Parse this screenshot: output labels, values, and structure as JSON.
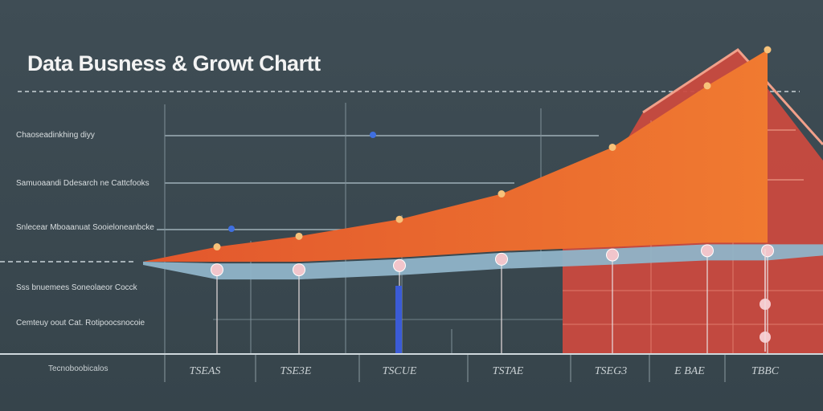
{
  "title": "Data Busness & Growt Chartt",
  "x_caption": "Tecnoboobicalos",
  "y_labels": [
    "Chaoseadinkhing diyy",
    "Samuoaandi  Ddesarch ne Cattcfooks",
    "Snlecear  Mboaanuat Sooieloneanbcke",
    "Sss bnuemees Soneolaeor Cocck",
    "Cemteuy oout Cat. Rotipoocsnocoie"
  ],
  "colors": {
    "background": "#3c4a52",
    "orange_area": "#e8622f",
    "red_block": "#c94a3f",
    "blue_band": "#8fb4c8",
    "blue_bar": "#3b5bd6"
  },
  "chart_data": {
    "type": "area",
    "title": "Data Busness & Growt Chartt",
    "xlabel": "Tecnoboobicalos",
    "ylabel": "",
    "categories": [
      "TSEAS",
      "TSE3E",
      "TSCUE",
      "TSTAE",
      "TSEG3",
      "E BAE",
      "TBBC"
    ],
    "ylim": [
      0,
      100
    ],
    "series": [
      {
        "values": [
          7,
          12,
          20,
          32,
          54,
          83,
          100
        ]
      },
      {
        "values": [
          3,
          3,
          5,
          8,
          10,
          12,
          12
        ]
      }
    ]
  }
}
